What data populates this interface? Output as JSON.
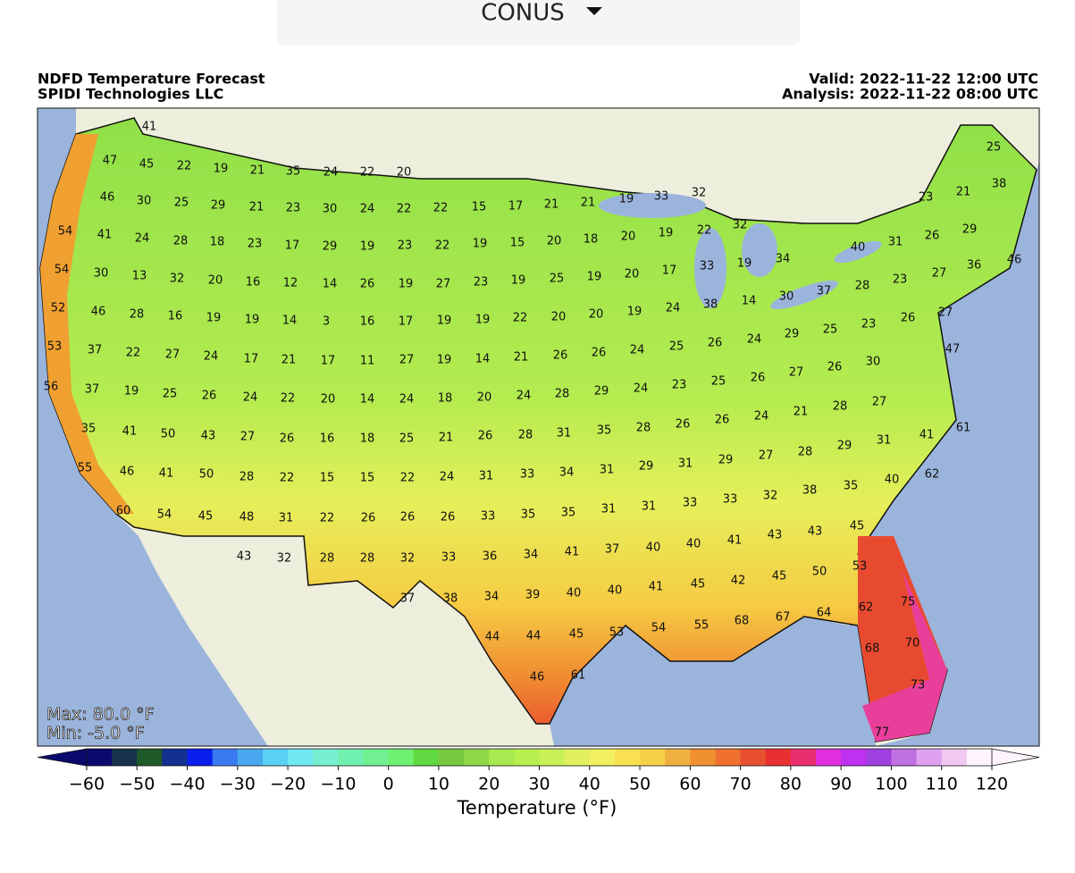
{
  "selector": {
    "label": "CONUS"
  },
  "header": {
    "title": "NDFD Temperature Forecast",
    "source": "SPIDI Technologies LLC",
    "valid": "Valid: 2022-11-22 12:00 UTC",
    "analysis": "Analysis: 2022-11-22 08:00 UTC"
  },
  "map": {
    "max": "Max: 80.0 °F",
    "min": "Min: -5.0 °F",
    "labels": [
      41,
      47,
      45,
      22,
      19,
      21,
      35,
      24,
      22,
      20,
      46,
      30,
      25,
      29,
      21,
      23,
      30,
      24,
      22,
      22,
      15,
      17,
      21,
      21,
      19,
      33,
      32,
      54,
      41,
      24,
      28,
      18,
      23,
      17,
      29,
      19,
      23,
      22,
      19,
      15,
      20,
      18,
      20,
      19,
      22,
      32,
      54,
      30,
      13,
      32,
      20,
      16,
      12,
      14,
      26,
      19,
      27,
      23,
      19,
      25,
      19,
      20,
      17,
      33,
      19,
      34,
      40,
      31,
      26,
      29,
      21,
      25,
      23,
      38,
      36,
      27,
      46,
      28,
      23,
      52,
      46,
      28,
      16,
      19,
      19,
      14,
      3,
      16,
      17,
      19,
      19,
      22,
      20,
      20,
      19,
      24,
      38,
      14,
      30,
      37,
      53,
      37,
      22,
      27,
      24,
      17,
      21,
      17,
      11,
      27,
      19,
      14,
      21,
      26,
      26,
      24,
      25,
      26,
      24,
      29,
      25,
      23,
      26,
      27,
      56,
      37,
      19,
      25,
      26,
      24,
      22,
      20,
      14,
      24,
      18,
      20,
      24,
      28,
      29,
      24,
      23,
      25,
      26,
      27,
      26,
      30,
      47,
      35,
      41,
      50,
      43,
      27,
      26,
      16,
      18,
      25,
      21,
      26,
      28,
      31,
      35,
      28,
      26,
      26,
      24,
      21,
      28,
      27,
      61,
      41,
      55,
      46,
      41,
      50,
      28,
      22,
      15,
      15,
      22,
      24,
      31,
      33,
      34,
      31,
      29,
      31,
      29,
      27,
      28,
      29,
      31,
      40,
      62,
      35,
      60,
      54,
      45,
      48,
      31,
      22,
      26,
      26,
      26,
      33,
      35,
      35,
      31,
      31,
      33,
      33,
      32,
      38,
      45,
      43,
      43,
      32,
      28,
      28,
      32,
      33,
      36,
      34,
      41,
      37,
      40,
      40,
      41,
      43,
      53,
      50,
      37,
      38,
      34,
      39,
      40,
      40,
      41,
      45,
      42,
      45,
      62,
      75,
      64,
      67,
      68,
      55,
      44,
      44,
      45,
      53,
      54,
      68,
      70,
      46,
      61,
      73,
      77
    ]
  },
  "colorbar": {
    "label": "Temperature (°F)",
    "lim": [
      -60,
      120
    ],
    "ticks": [
      {
        "value": -60,
        "label": "−60"
      },
      {
        "value": -50,
        "label": "−50"
      },
      {
        "value": -40,
        "label": "−40"
      },
      {
        "value": -30,
        "label": "−30"
      },
      {
        "value": -20,
        "label": "−20"
      },
      {
        "value": -10,
        "label": "−10"
      },
      0,
      10,
      20,
      30,
      40,
      50,
      60,
      70,
      80,
      90,
      100,
      110,
      120
    ],
    "colors": [
      "#0a0a6e",
      "#16324a",
      "#1f5a2a",
      "#123090",
      "#0a1ef0",
      "#3a7af0",
      "#4aa8f0",
      "#5ad0f5",
      "#70e8f0",
      "#78f0d0",
      "#70f0b0",
      "#70f090",
      "#6ef070",
      "#60d840",
      "#78c840",
      "#90d848",
      "#a8e850",
      "#b8f050",
      "#c8f058",
      "#e0f060",
      "#f0f060",
      "#f8e050",
      "#f8d048",
      "#f0b040",
      "#f09030",
      "#f07030",
      "#e85030",
      "#e83030",
      "#e83070",
      "#e030e0",
      "#c030f0",
      "#a040e0",
      "#c070e0",
      "#e0a0f0",
      "#f0c8f0",
      "#fdf4fd"
    ]
  }
}
